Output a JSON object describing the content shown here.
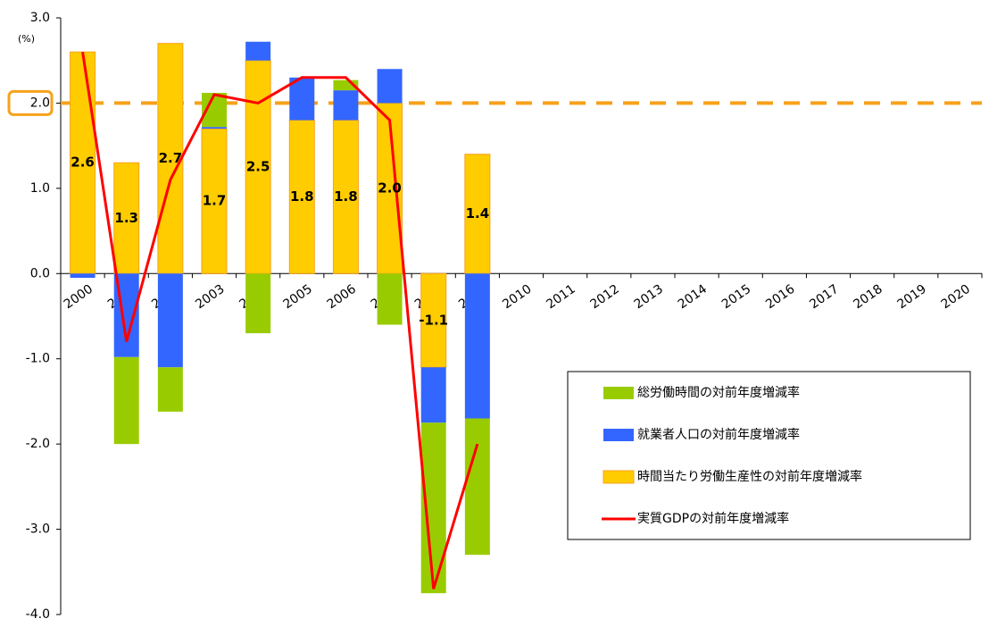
{
  "chart_data": {
    "type": "bar",
    "y_unit_label": "(%)",
    "categories": [
      "2000",
      "2001",
      "2002",
      "2003",
      "2004",
      "2005",
      "2006",
      "2007",
      "2008",
      "2009",
      "2010",
      "2011",
      "2012",
      "2013",
      "2014",
      "2015",
      "2016",
      "2017",
      "2018",
      "2019",
      "2020"
    ],
    "series": [
      {
        "name": "総労働時間の対前年度増減率",
        "type": "bar",
        "color": "#99cc00",
        "values": [
          0,
          -1.02,
          -0.52,
          0.4,
          -0.7,
          0,
          0.12,
          -0.6,
          -2.0,
          -1.6,
          null,
          null,
          null,
          null,
          null,
          null,
          null,
          null,
          null,
          null,
          null
        ]
      },
      {
        "name": "就業者人口の対前年度増減率",
        "type": "bar",
        "color": "#3366ff",
        "values": [
          -0.05,
          -0.98,
          -1.1,
          0.02,
          0.22,
          0.5,
          0.35,
          0.4,
          -0.65,
          -1.7,
          null,
          null,
          null,
          null,
          null,
          null,
          null,
          null,
          null,
          null,
          null
        ]
      },
      {
        "name": "時間当たり労働生産性の対前年度増減率",
        "type": "bar",
        "color": "#ffcc00",
        "border_color": "#f7a21b",
        "values": [
          2.6,
          1.3,
          2.7,
          1.7,
          2.5,
          1.8,
          1.8,
          2.0,
          -1.1,
          1.4,
          null,
          null,
          null,
          null,
          null,
          null,
          null,
          null,
          null,
          null,
          null
        ],
        "value_labels": [
          "2.6",
          "1.3",
          "2.7",
          "1.7",
          "2.5",
          "1.8",
          "1.8",
          "2.0",
          "-1.1",
          "1.4",
          null,
          null,
          null,
          null,
          null,
          null,
          null,
          null,
          null,
          null,
          null
        ]
      },
      {
        "name": "実質GDPの対前年度増減率",
        "type": "line",
        "color": "#ff0000",
        "values": [
          2.6,
          -0.8,
          1.1,
          2.1,
          2.0,
          2.3,
          2.3,
          1.8,
          -3.7,
          -2.0,
          null,
          null,
          null,
          null,
          null,
          null,
          null,
          null,
          null,
          null,
          null
        ]
      }
    ],
    "ylim": [
      -4,
      3
    ],
    "yticks": [
      {
        "value": 3,
        "label": "3.0"
      },
      {
        "value": 2,
        "label": "2.0"
      },
      {
        "value": 1,
        "label": "1.0"
      },
      {
        "value": 0,
        "label": "0.0"
      },
      {
        "value": -1,
        "label": "-1.0"
      },
      {
        "value": -2,
        "label": "-2.0"
      },
      {
        "value": -3,
        "label": "-3.0"
      },
      {
        "value": -4,
        "label": "-4.0"
      }
    ],
    "reference_line": {
      "value": 2,
      "color": "#f7a21b"
    },
    "legend": "lower right"
  }
}
